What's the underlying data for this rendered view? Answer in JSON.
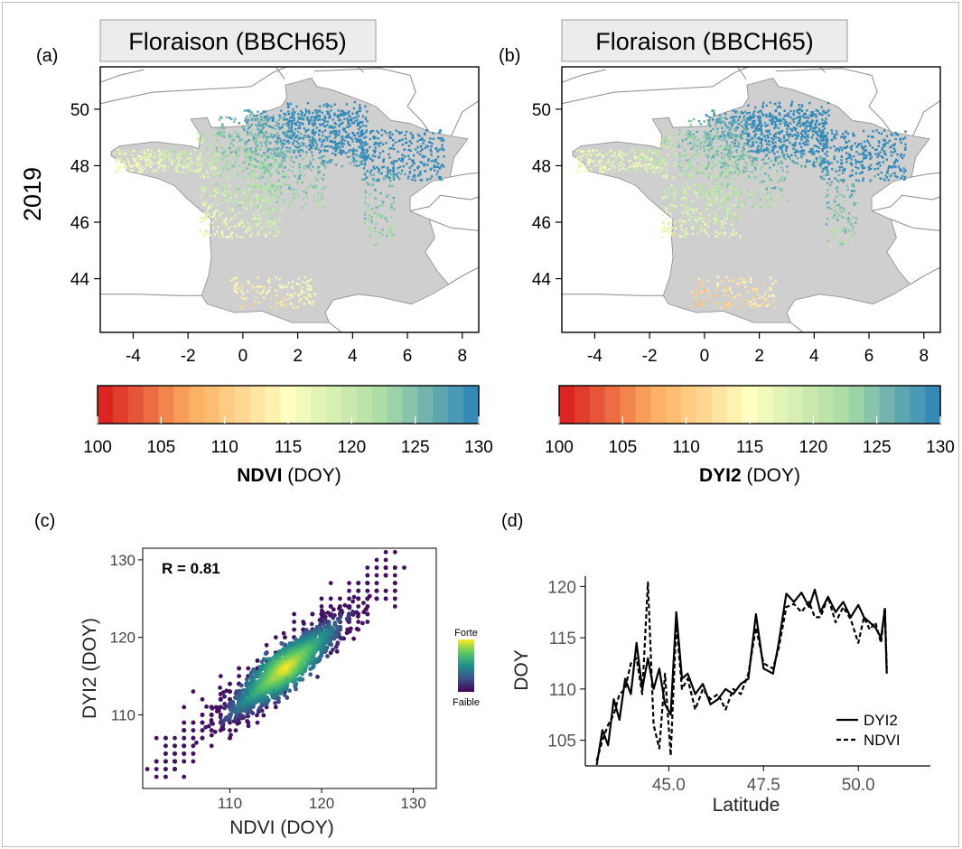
{
  "panels": {
    "a": {
      "letter": "(a)",
      "strip_title": "Floraison (BBCH65)",
      "row_label": "2019",
      "y_ticks": [
        "50",
        "48",
        "46",
        "44"
      ],
      "x_ticks": [
        "-4",
        "-2",
        "0",
        "2",
        "4",
        "6",
        "8"
      ],
      "colorbar_ticks": [
        "100",
        "105",
        "110",
        "115",
        "120",
        "125",
        "130"
      ],
      "colorbar_label_bold": "NDVI",
      "colorbar_label_rest": " (DOY)"
    },
    "b": {
      "letter": "(b)",
      "strip_title": "Floraison (BBCH65)",
      "y_ticks": [
        "50",
        "48",
        "46",
        "44"
      ],
      "x_ticks": [
        "-4",
        "-2",
        "0",
        "2",
        "4",
        "6",
        "8"
      ],
      "colorbar_ticks": [
        "100",
        "105",
        "110",
        "115",
        "120",
        "125",
        "130"
      ],
      "colorbar_label_bold": "DYI2",
      "colorbar_label_rest": " (DOY)"
    },
    "c": {
      "letter": "(c)",
      "r_label": "R =  0.81",
      "xlabel": "NDVI (DOY)",
      "ylabel": "DYI2 (DOY)",
      "x_ticks": [
        "110",
        "120",
        "130"
      ],
      "y_ticks": [
        "110",
        "120",
        "130"
      ],
      "density_high": "Forte",
      "density_low": "Faible"
    },
    "d": {
      "letter": "(d)",
      "xlabel": "Latitude",
      "ylabel": "DOY",
      "x_ticks": [
        "45.0",
        "47.5",
        "50.0"
      ],
      "y_ticks": [
        "105",
        "110",
        "115",
        "120"
      ],
      "legend": [
        "DYI2",
        "NDVI"
      ]
    }
  },
  "colors": {
    "map_land": "#cfcfcf",
    "map_border": "#8a8a8a",
    "colorbar": [
      "#d7191c",
      "#fdae61",
      "#ffffbf",
      "#abdda4",
      "#2b83ba"
    ],
    "density": [
      "#440154",
      "#3b528b",
      "#21908c",
      "#5dc963",
      "#fde725"
    ]
  },
  "chart_data": [
    {
      "type": "heatmap",
      "title": "Floraison (BBCH65)",
      "variable": "NDVI",
      "year": "2019",
      "x_range": [
        -5.2,
        8.6
      ],
      "y_range": [
        42.1,
        51.5
      ],
      "color_scale": [
        100,
        130
      ]
    },
    {
      "type": "heatmap",
      "title": "Floraison (BBCH65)",
      "variable": "DYI2",
      "year": "2019",
      "x_range": [
        -5.2,
        8.6
      ],
      "y_range": [
        42.1,
        51.5
      ],
      "color_scale": [
        100,
        130
      ]
    },
    {
      "type": "scatter",
      "r": 0.81,
      "xlabel": "NDVI (DOY)",
      "ylabel": "DYI2 (DOY)",
      "xlim": [
        100.5,
        132.5
      ],
      "ylim": [
        100.5,
        131.5
      ],
      "density_center": [
        116,
        116
      ],
      "point_range": [
        102,
        128
      ]
    },
    {
      "type": "line",
      "xlabel": "Latitude",
      "ylabel": "DOY",
      "xlim": [
        42.8,
        51.9
      ],
      "ylim": [
        102.5,
        121
      ],
      "series": [
        {
          "name": "DYI2",
          "x": [
            43.1,
            43.25,
            43.4,
            43.55,
            43.7,
            43.85,
            44.0,
            44.15,
            44.3,
            44.45,
            44.6,
            44.75,
            44.9,
            45.05,
            45.2,
            45.35,
            45.5,
            45.7,
            45.9,
            46.1,
            46.3,
            46.5,
            46.7,
            46.9,
            47.1,
            47.3,
            47.5,
            47.75,
            47.9,
            48.1,
            48.3,
            48.5,
            48.7,
            48.85,
            49.0,
            49.2,
            49.4,
            49.6,
            49.8,
            50.0,
            50.15,
            50.3,
            50.45,
            50.6,
            50.7,
            50.75
          ],
          "y": [
            102.6,
            106,
            104.5,
            109,
            107,
            111,
            109.5,
            114.5,
            110,
            113,
            110,
            112,
            108.5,
            107.5,
            117.5,
            111,
            111.5,
            109.5,
            110.5,
            108.5,
            109,
            110,
            109.5,
            110.5,
            111,
            117.3,
            112,
            111.5,
            114.5,
            119.3,
            118.5,
            119.4,
            118,
            119.7,
            117.5,
            119,
            117.5,
            118.5,
            117,
            118.2,
            117,
            116.5,
            116,
            115,
            117.8,
            111.5
          ]
        },
        {
          "name": "NDVI",
          "x": [
            43.1,
            43.25,
            43.4,
            43.55,
            43.7,
            43.85,
            44.0,
            44.15,
            44.3,
            44.45,
            44.6,
            44.75,
            44.9,
            45.05,
            45.2,
            45.35,
            45.5,
            45.7,
            45.9,
            46.1,
            46.3,
            46.5,
            46.7,
            46.9,
            47.1,
            47.3,
            47.5,
            47.75,
            47.9,
            48.1,
            48.3,
            48.5,
            48.7,
            48.85,
            49.0,
            49.2,
            49.4,
            49.6,
            49.8,
            50.0,
            50.15,
            50.3,
            50.45,
            50.6,
            50.7,
            50.75
          ],
          "y": [
            103,
            105,
            106.5,
            107.5,
            109.5,
            110,
            112.5,
            113,
            109.5,
            120.4,
            106.5,
            104.2,
            111.5,
            103.5,
            116.5,
            110,
            111,
            108,
            110,
            109,
            109.5,
            108,
            110,
            109.5,
            111.5,
            116,
            112.5,
            112,
            114,
            118,
            118.3,
            117.5,
            118.5,
            117,
            117,
            119,
            116.5,
            118,
            116.8,
            114.5,
            117,
            115.8,
            116.5,
            114.5,
            118,
            112
          ]
        }
      ]
    }
  ]
}
